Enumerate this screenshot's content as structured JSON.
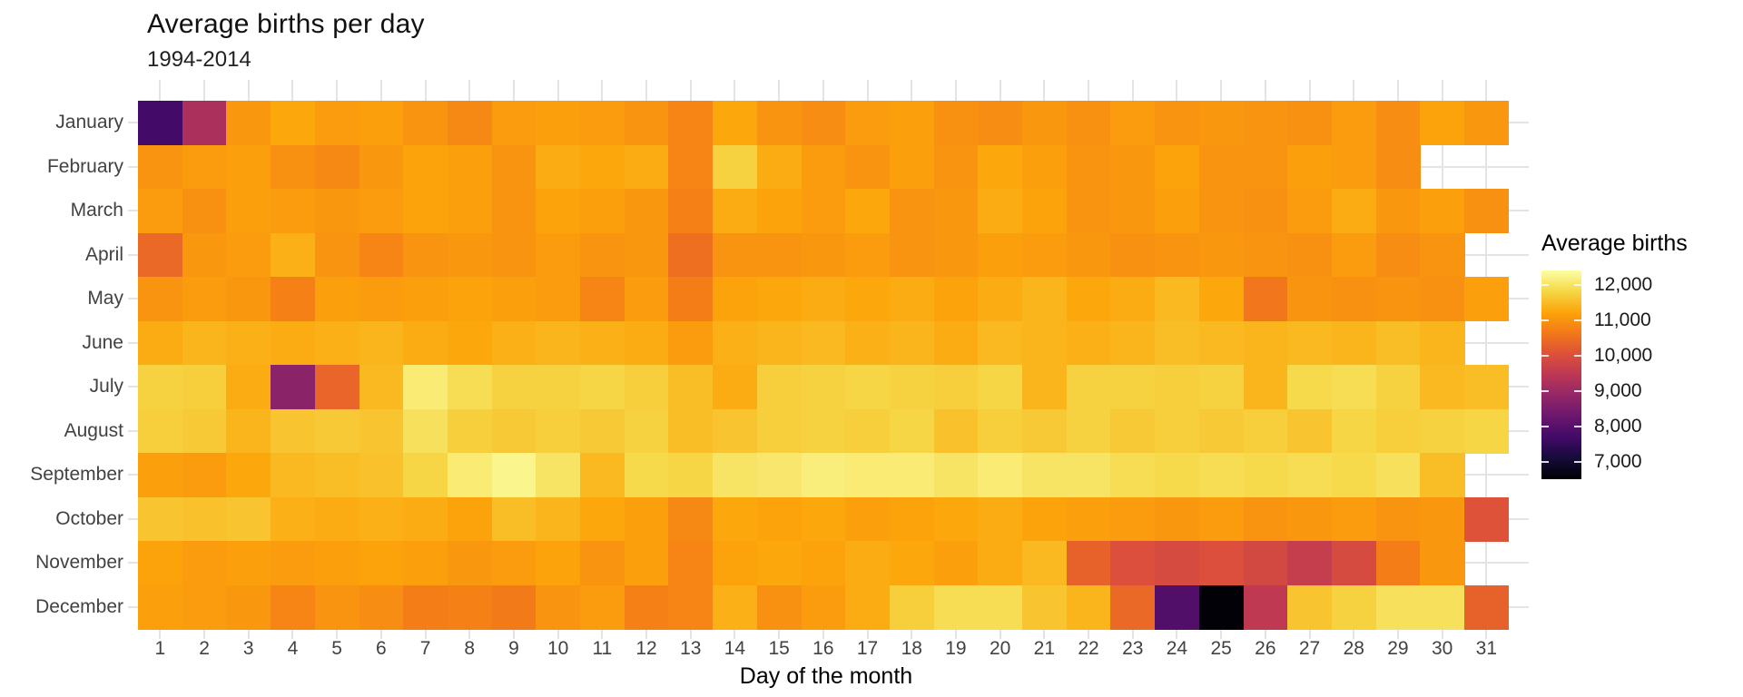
{
  "chart": {
    "title": "Average births per day",
    "subtitle": "1994-2014",
    "xlabel": "Day of the month",
    "legend_title": "Average births"
  },
  "chart_data": {
    "type": "heatmap",
    "title": "Average births per day",
    "subtitle": "1994-2014",
    "xlabel": "Day of the month",
    "ylabel": "",
    "legend": {
      "title": "Average births",
      "position": "right",
      "tick_values": [
        12000,
        11000,
        10000,
        9000,
        8000,
        7000
      ],
      "tick_labels": [
        "12,000",
        "11,000",
        "10,000",
        "9,000",
        "8,000",
        "7,000"
      ]
    },
    "color_scale": {
      "name": "inferno",
      "domain": [
        6500,
        12400
      ],
      "anchors": [
        [
          0.0,
          "#000004"
        ],
        [
          0.1,
          "#160b39"
        ],
        [
          0.2,
          "#420a68"
        ],
        [
          0.3,
          "#6a176e"
        ],
        [
          0.4,
          "#932667"
        ],
        [
          0.5,
          "#bc3754"
        ],
        [
          0.6,
          "#dd513a"
        ],
        [
          0.7,
          "#f37819"
        ],
        [
          0.8,
          "#fca50a"
        ],
        [
          0.9,
          "#f6d746"
        ],
        [
          1.0,
          "#fcffa4"
        ]
      ]
    },
    "rows": [
      "January",
      "February",
      "March",
      "April",
      "May",
      "June",
      "July",
      "August",
      "September",
      "October",
      "November",
      "December"
    ],
    "columns": [
      1,
      2,
      3,
      4,
      5,
      6,
      7,
      8,
      9,
      10,
      11,
      12,
      13,
      14,
      15,
      16,
      17,
      18,
      19,
      20,
      21,
      22,
      23,
      24,
      25,
      26,
      27,
      28,
      29,
      30,
      31
    ],
    "values": [
      [
        7700,
        9200,
        11050,
        11250,
        11100,
        11150,
        11000,
        10850,
        11100,
        11150,
        11100,
        11000,
        10800,
        11250,
        11000,
        10900,
        11100,
        11150,
        10950,
        10900,
        11050,
        10950,
        11100,
        11000,
        11050,
        11000,
        10950,
        11100,
        10900,
        11200,
        11050
      ],
      [
        11000,
        11100,
        11150,
        10950,
        10850,
        11050,
        11200,
        11150,
        11000,
        11300,
        11250,
        11300,
        10800,
        11750,
        11300,
        11100,
        11000,
        11150,
        11000,
        11250,
        11150,
        11000,
        11050,
        11200,
        11000,
        11000,
        11150,
        11100,
        10900,
        null,
        null
      ],
      [
        11100,
        10950,
        11150,
        11100,
        11050,
        11100,
        11200,
        11150,
        11000,
        11200,
        11150,
        11050,
        10750,
        11300,
        11200,
        11100,
        11250,
        11000,
        11050,
        11300,
        11200,
        11000,
        11050,
        11150,
        11000,
        10950,
        11100,
        11300,
        11050,
        11150,
        10950
      ],
      [
        10400,
        11050,
        11100,
        11350,
        11000,
        10800,
        11000,
        11050,
        11000,
        11100,
        11000,
        11050,
        10500,
        11000,
        11000,
        11050,
        11100,
        11000,
        11050,
        11150,
        11100,
        11050,
        10950,
        11000,
        11050,
        11000,
        10950,
        11100,
        10900,
        11000,
        null
      ],
      [
        11000,
        11100,
        11050,
        10750,
        11150,
        11100,
        11150,
        11200,
        11150,
        11100,
        10800,
        11100,
        10700,
        11200,
        11250,
        11300,
        11250,
        11300,
        11200,
        11300,
        11400,
        11250,
        11300,
        11450,
        11250,
        10600,
        11000,
        10950,
        11000,
        10950,
        11150
      ],
      [
        11300,
        11400,
        11350,
        11300,
        11350,
        11400,
        11300,
        11250,
        11350,
        11400,
        11350,
        11300,
        11100,
        11350,
        11400,
        11450,
        11350,
        11400,
        11300,
        11450,
        11400,
        11350,
        11400,
        11500,
        11450,
        11400,
        11450,
        11400,
        11500,
        11400,
        null
      ],
      [
        11750,
        11700,
        11300,
        8750,
        10350,
        11450,
        12100,
        11900,
        11750,
        11750,
        11800,
        11700,
        11500,
        11300,
        11700,
        11750,
        11800,
        11750,
        11700,
        11800,
        11400,
        11750,
        11750,
        11700,
        11750,
        11400,
        11850,
        11900,
        11750,
        11450,
        11500
      ],
      [
        11700,
        11650,
        11400,
        11600,
        11650,
        11600,
        11950,
        11700,
        11650,
        11700,
        11650,
        11750,
        11500,
        11600,
        11700,
        11750,
        11700,
        11800,
        11550,
        11700,
        11650,
        11750,
        11650,
        11700,
        11650,
        11700,
        11600,
        11800,
        11700,
        11750,
        11800
      ],
      [
        11150,
        11100,
        11250,
        11450,
        11500,
        11550,
        11800,
        12100,
        12250,
        12000,
        11450,
        11850,
        11800,
        12000,
        12050,
        12150,
        12100,
        12100,
        12000,
        12100,
        12000,
        12000,
        11900,
        11850,
        11900,
        11850,
        11900,
        11850,
        11950,
        11500,
        null
      ],
      [
        11600,
        11550,
        11600,
        11350,
        11300,
        11350,
        11300,
        11200,
        11500,
        11400,
        11250,
        11150,
        10850,
        11250,
        11200,
        11250,
        11150,
        11200,
        11250,
        11300,
        11200,
        11150,
        11100,
        11050,
        11100,
        11000,
        11050,
        11100,
        11000,
        11050,
        10050
      ],
      [
        11200,
        11100,
        11150,
        11100,
        11150,
        11200,
        11150,
        11050,
        11100,
        11200,
        11000,
        11150,
        10800,
        11200,
        11250,
        11200,
        11300,
        11250,
        11150,
        11300,
        11450,
        10300,
        10000,
        9900,
        10000,
        9850,
        9600,
        9900,
        10700,
        11050,
        null
      ],
      [
        11150,
        11100,
        11050,
        10800,
        11000,
        10900,
        10700,
        10750,
        10650,
        11000,
        11100,
        10750,
        10800,
        11350,
        10950,
        11100,
        11300,
        11700,
        11900,
        11900,
        11600,
        11400,
        10400,
        7900,
        6550,
        9500,
        11600,
        11750,
        11950,
        11950,
        10300
      ]
    ],
    "colors": {
      "background": "#ffffff",
      "grid": "#e4e4e4",
      "axis_text": "#424242",
      "axis_title": "#000000"
    },
    "layout_hints": {
      "grid": "light gray stubs at tick positions, visible around panel and in missing cells",
      "missing_cells": "Feb 30-31, Apr 31, Jun 31, Sep 31, Nov 31"
    }
  }
}
